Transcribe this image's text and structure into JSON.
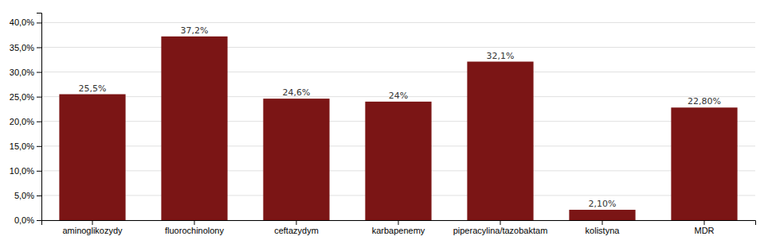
{
  "chart_data": {
    "type": "bar",
    "categories": [
      "aminoglikozydy",
      "fluorochinolony",
      "ceftazydym",
      "karbapenemy",
      "piperacylina/tazobaktam",
      "kolistyna",
      "MDR"
    ],
    "values": [
      25.5,
      37.2,
      24.6,
      24.0,
      32.1,
      2.1,
      22.8
    ],
    "value_labels": [
      "25,5%",
      "37,2%",
      "24,6%",
      "24%",
      "32,1%",
      "2,10%",
      "22,80%"
    ],
    "data_labels": true,
    "color": "#7B1515",
    "ylim": [
      0,
      42
    ],
    "yticks": [
      {
        "value": 0.0,
        "label": "0,0%"
      },
      {
        "value": 5.0,
        "label": "5,0%"
      },
      {
        "value": 10.0,
        "label": "10,0%"
      },
      {
        "value": 15.0,
        "label": "15,0%"
      },
      {
        "value": 20.0,
        "label": "20,0%"
      },
      {
        "value": 25.0,
        "label": "25,0%"
      },
      {
        "value": 30.0,
        "label": "30,0%"
      },
      {
        "value": 35.0,
        "label": "35,0%"
      },
      {
        "value": 40.0,
        "label": "40,0%"
      }
    ],
    "grid": true
  }
}
